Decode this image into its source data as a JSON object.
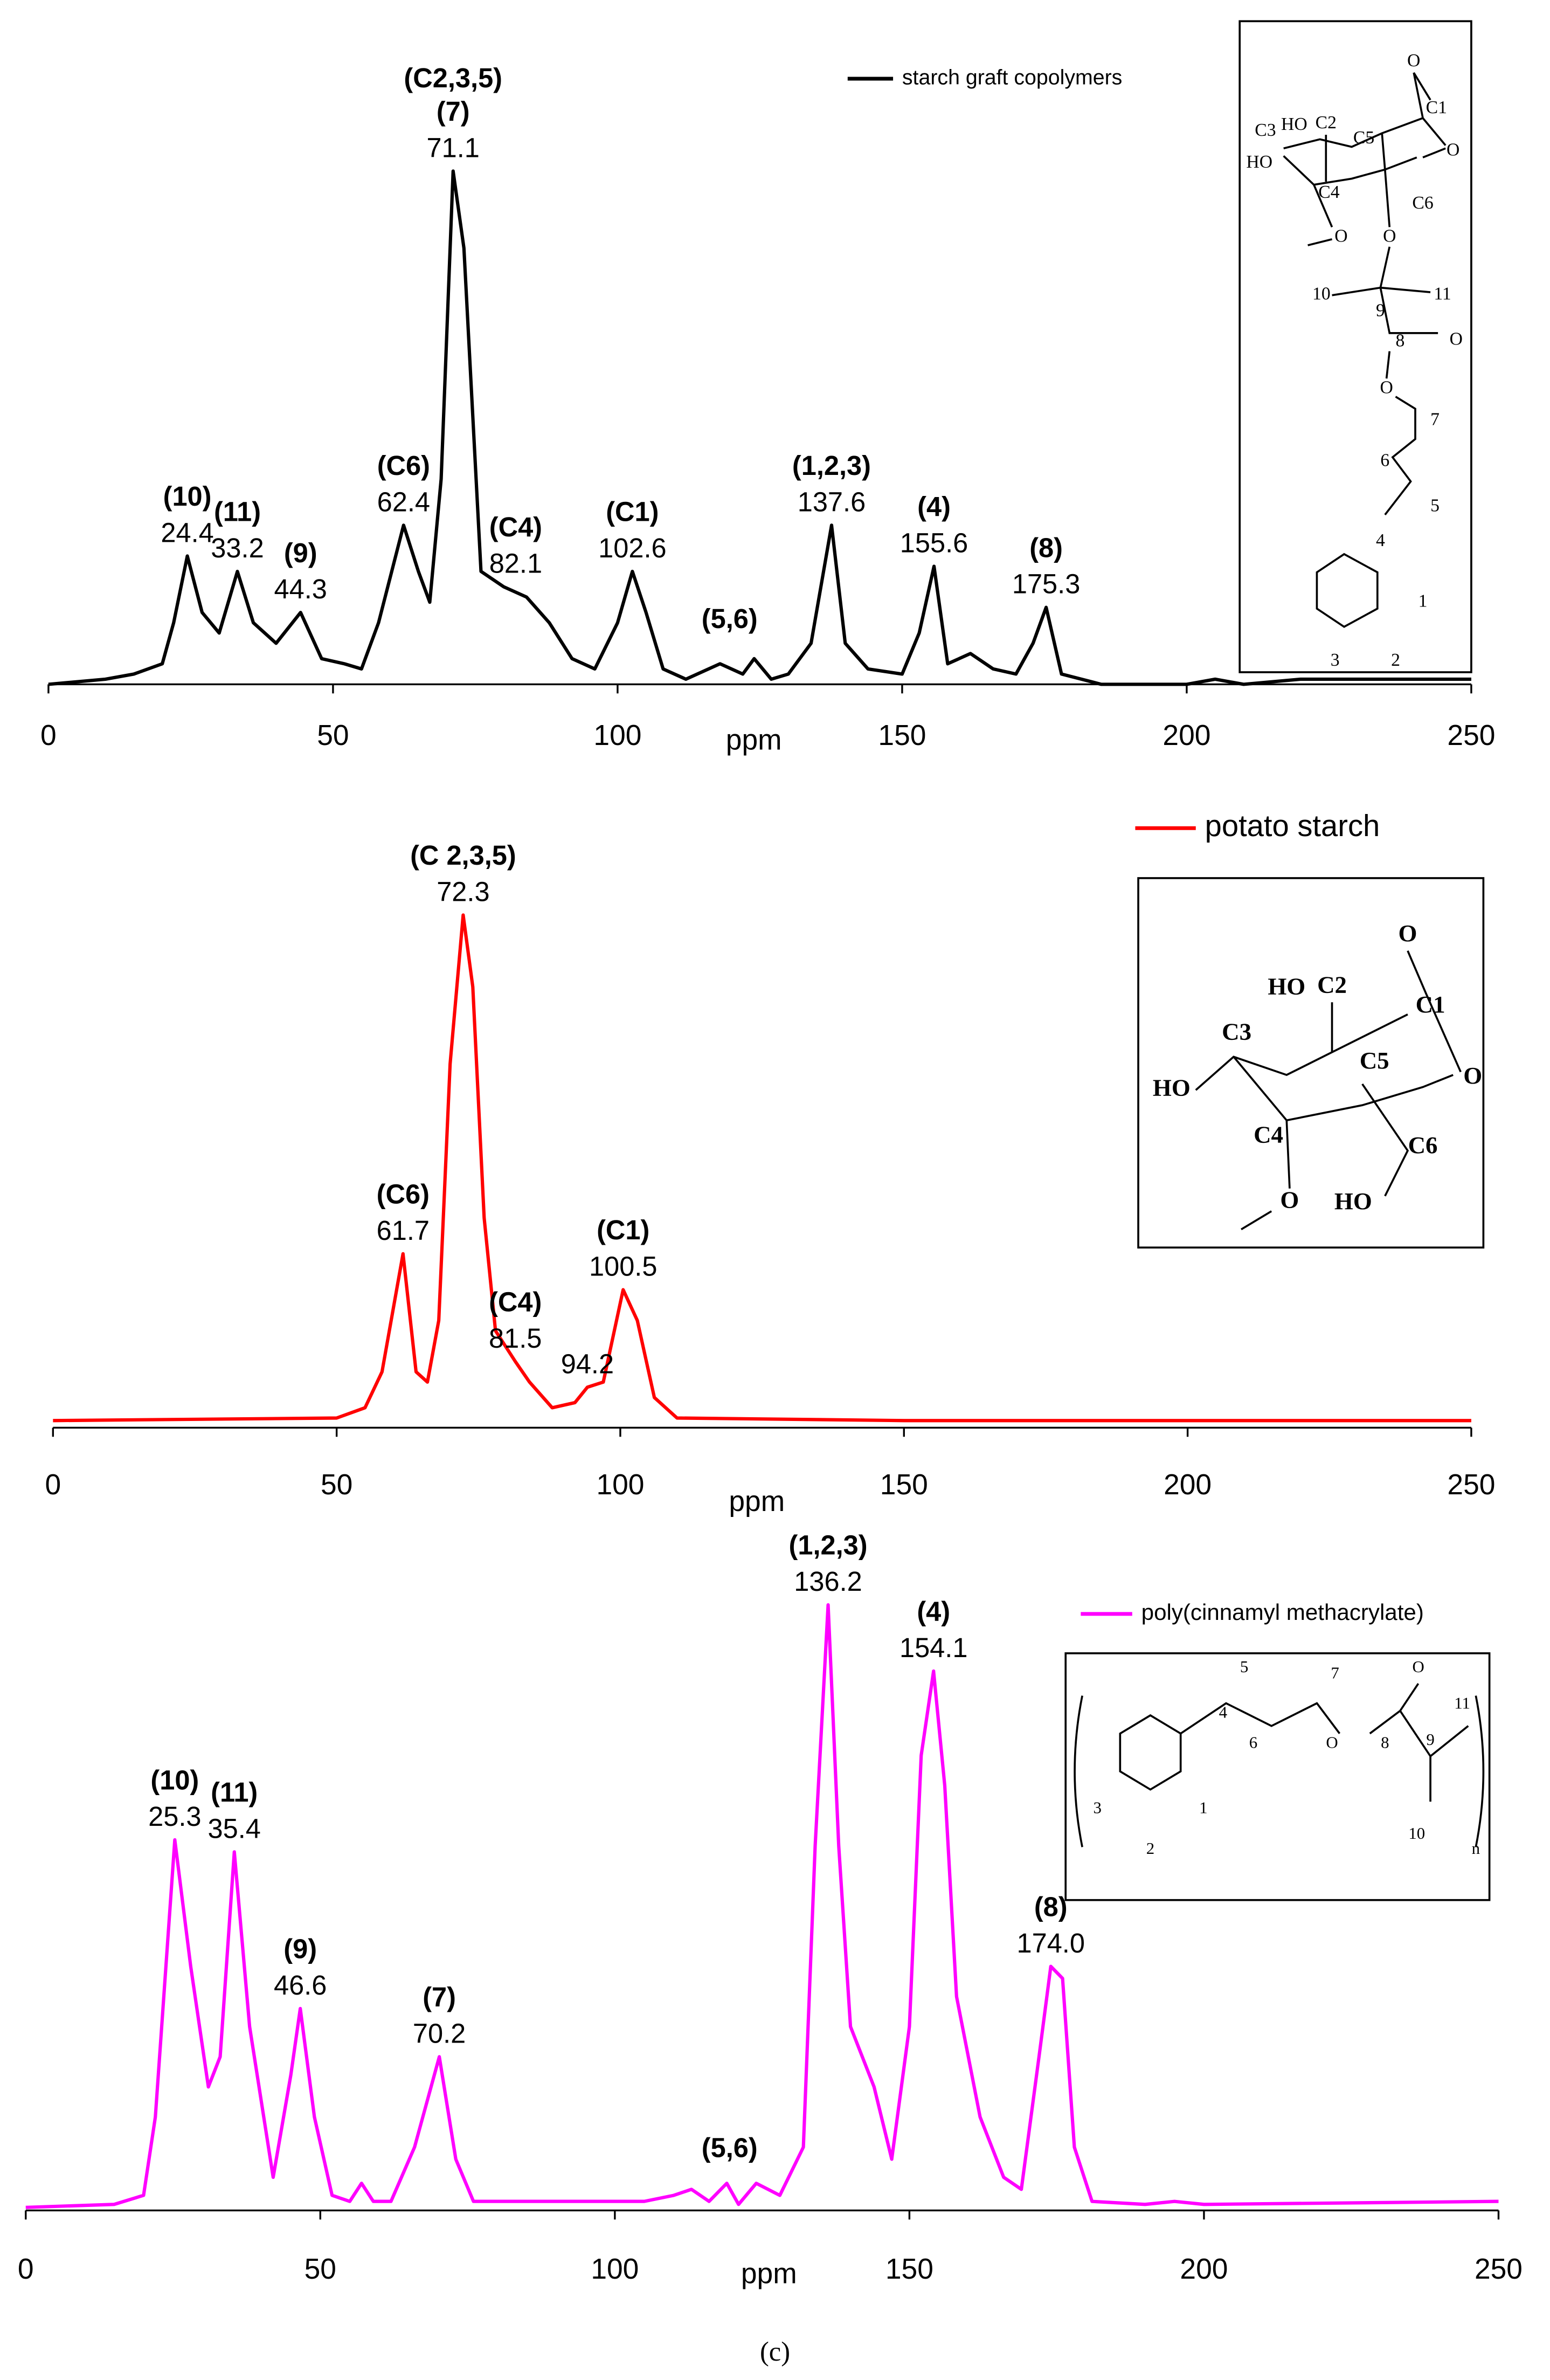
{
  "chart_data": [
    {
      "type": "line",
      "x_label": "ppm",
      "xlim": [
        0,
        250
      ],
      "xticks": [
        0,
        50,
        100,
        150,
        200,
        250
      ],
      "ylim": [
        0,
        100
      ],
      "x": [
        0,
        10,
        15,
        20,
        22,
        24.4,
        27,
        30,
        33.2,
        36,
        40,
        44.3,
        48,
        52,
        55,
        58,
        62.4,
        65,
        67,
        69,
        71.1,
        73,
        76,
        80,
        84,
        88,
        92,
        96,
        100,
        102.6,
        105,
        108,
        112,
        118,
        122,
        124,
        127,
        130,
        134,
        137.6,
        140,
        144,
        150,
        153,
        155.6,
        158,
        162,
        166,
        170,
        173,
        175.3,
        178,
        185,
        200,
        205,
        210,
        220,
        230,
        240,
        250
      ],
      "series": [
        {
          "name": "starch graft copolymers",
          "color": "#000000",
          "values": [
            0,
            1,
            2,
            4,
            12,
            25,
            14,
            10,
            22,
            12,
            8,
            14,
            5,
            4,
            3,
            12,
            31,
            22,
            16,
            40,
            100,
            85,
            22,
            19,
            17,
            12,
            5,
            3,
            12,
            22,
            14,
            3,
            1,
            4,
            2,
            5,
            1,
            2,
            8,
            31,
            8,
            3,
            2,
            10,
            23,
            4,
            6,
            3,
            2,
            8,
            15,
            2,
            0,
            0,
            1,
            0,
            1,
            1,
            1,
            1
          ]
        }
      ],
      "peaks": [
        {
          "groups": [
            "(10)"
          ],
          "ppm": 24.4
        },
        {
          "groups": [
            "(11)"
          ],
          "ppm": 33.2
        },
        {
          "groups": [
            "(9)"
          ],
          "ppm": 44.3
        },
        {
          "groups": [
            "(C6)"
          ],
          "ppm": 62.4
        },
        {
          "groups": [
            "(C2,3,5)",
            "(7)"
          ],
          "ppm": 71.1
        },
        {
          "groups": [
            "(C4)"
          ],
          "ppm": 82.1
        },
        {
          "groups": [
            "(C1)"
          ],
          "ppm": 102.6
        },
        {
          "groups": [
            "(5,6)"
          ]
        },
        {
          "groups": [
            "(1,2,3)"
          ],
          "ppm": 137.6
        },
        {
          "groups": [
            "(4)"
          ],
          "ppm": 155.6
        },
        {
          "groups": [
            "(8)"
          ],
          "ppm": 175.3
        }
      ],
      "structure_labels": [
        "O",
        "HO",
        "C2",
        "C1",
        "C3",
        "C5",
        "O",
        "HO",
        "C4",
        "C6",
        "O",
        "O",
        "10",
        "9",
        "11",
        "8",
        "O",
        "O",
        "7",
        "6",
        "5",
        "4",
        "1",
        "3",
        "2"
      ]
    },
    {
      "type": "line",
      "x_label": "ppm",
      "xlim": [
        0,
        250
      ],
      "xticks": [
        0,
        50,
        100,
        150,
        200,
        250
      ],
      "ylim": [
        0,
        100
      ],
      "x": [
        0,
        50,
        55,
        58,
        61.7,
        64,
        66,
        68,
        70,
        72.3,
        74,
        76,
        78,
        81.5,
        84,
        88,
        92,
        94.2,
        97,
        100.5,
        103,
        106,
        110,
        150,
        200,
        250
      ],
      "series": [
        {
          "name": "potato starch",
          "color": "#ff0000",
          "values": [
            0.5,
            1,
            3,
            10,
            33,
            10,
            8,
            20,
            70,
            99,
            85,
            40,
            18,
            12,
            8,
            3,
            4,
            7,
            8,
            26,
            20,
            5,
            1,
            0.5,
            0.5,
            0.5
          ]
        }
      ],
      "peaks": [
        {
          "groups": [
            "(C 2,3,5)"
          ],
          "ppm": 72.3
        },
        {
          "groups": [
            "(C6)"
          ],
          "ppm": 61.7
        },
        {
          "groups": [
            "(C4)"
          ],
          "ppm": 81.5
        },
        {
          "groups": [],
          "ppm": 94.2
        },
        {
          "groups": [
            "(C1)"
          ],
          "ppm": 100.5
        }
      ],
      "structure_labels": [
        "O",
        "HO",
        "C2",
        "C1",
        "C3",
        "C5",
        "O",
        "HO",
        "C4",
        "C6",
        "O",
        "HO"
      ]
    },
    {
      "type": "line",
      "x_label": "ppm",
      "xlim": [
        0,
        250
      ],
      "xticks": [
        0,
        50,
        100,
        150,
        200,
        250
      ],
      "ylim": [
        0,
        100
      ],
      "x": [
        0,
        15,
        20,
        22,
        25.3,
        28,
        31,
        33,
        35.4,
        38,
        42,
        45,
        46.6,
        49,
        52,
        55,
        57,
        59,
        62,
        66,
        70.2,
        73,
        76,
        90,
        105,
        110,
        113,
        116,
        119,
        121,
        124,
        128,
        132,
        134,
        136.2,
        138,
        140,
        144,
        147,
        150,
        152,
        154.1,
        156,
        158,
        162,
        166,
        169,
        172,
        174,
        176,
        178,
        181,
        190,
        195,
        200,
        250
      ],
      "series": [
        {
          "name": "poly(cinnamyl methacrylate)",
          "color": "#ff00ff",
          "values": [
            0,
            0.5,
            2,
            15,
            61,
            40,
            20,
            25,
            59,
            30,
            5,
            22,
            33,
            15,
            2,
            1,
            4,
            1,
            1,
            10,
            25,
            8,
            1,
            1,
            1,
            2,
            3,
            1,
            4,
            0.5,
            4,
            2,
            10,
            60,
            100,
            60,
            30,
            20,
            8,
            30,
            75,
            89,
            70,
            35,
            15,
            5,
            3,
            25,
            40,
            38,
            10,
            1,
            0.5,
            1,
            0.5,
            1
          ]
        }
      ],
      "peaks": [
        {
          "groups": [
            "(10)"
          ],
          "ppm": 25.3
        },
        {
          "groups": [
            "(11)"
          ],
          "ppm": 35.4
        },
        {
          "groups": [
            "(9)"
          ],
          "ppm": 46.6
        },
        {
          "groups": [
            "(7)"
          ],
          "ppm": 70.2
        },
        {
          "groups": [
            "(5,6)"
          ]
        },
        {
          "groups": [
            "(1,2,3)"
          ],
          "ppm": 136.2
        },
        {
          "groups": [
            "(4)"
          ],
          "ppm": 154.1
        },
        {
          "groups": [
            "(8)"
          ],
          "ppm": {
            "value": 174,
            "label": "174.0"
          }
        }
      ],
      "structure_labels": [
        "5",
        "7",
        "O",
        "4",
        "9",
        "11",
        "6",
        "O",
        "8",
        "3",
        "1",
        "10",
        "n",
        "2"
      ]
    }
  ],
  "caption": "(c)"
}
